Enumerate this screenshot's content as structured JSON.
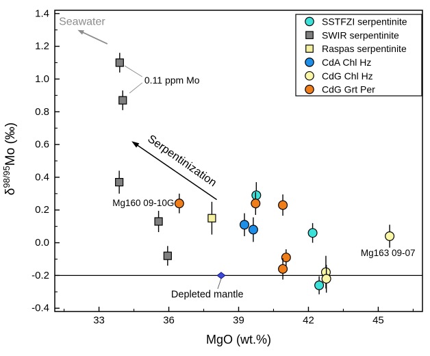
{
  "figure_title": "Mo isotope vs MgO scatter plot",
  "chart_data": {
    "type": "scatter",
    "xlabel": "MgO (wt.%)",
    "ylabel": {
      "delta": "δ",
      "superscript": "98/95",
      "rest": "Mo (‰)"
    },
    "xlim": [
      31.1,
      46.9
    ],
    "ylim": [
      -0.42,
      1.42
    ],
    "xticks": [
      33,
      36,
      39,
      42,
      45
    ],
    "xminorticks": [
      31.5,
      34.5,
      37.5,
      40.5,
      43.5,
      46.5
    ],
    "yticks": [
      1.4,
      1.2,
      1.0,
      0.8,
      0.6,
      0.4,
      0.2,
      0.0,
      -0.2,
      -0.4
    ],
    "yminorticks": [
      1.3,
      1.1,
      0.9,
      0.7,
      0.5,
      0.3,
      0.1,
      -0.1,
      -0.3
    ],
    "grid": false,
    "legend_position": "top-right",
    "frame_color": "#000000",
    "background_color": "#ffffff",
    "series": [
      {
        "name": "SSTFZI serpentinite",
        "marker": "circle",
        "color": "#3be0d8",
        "points": [
          {
            "x": 39.76,
            "y": 0.29,
            "e": 0.08
          },
          {
            "x": 42.18,
            "y": 0.06,
            "e": 0.06
          },
          {
            "x": 42.46,
            "y": -0.26,
            "e": 0.055
          }
        ]
      },
      {
        "name": "SWIR serpentinite",
        "marker": "square",
        "color": "#7f7f7f",
        "points": [
          {
            "x": 33.89,
            "y": 1.1,
            "e": 0.06
          },
          {
            "x": 34.02,
            "y": 0.87,
            "e": 0.06
          },
          {
            "x": 33.87,
            "y": 0.37,
            "e": 0.07
          },
          {
            "x": 35.56,
            "y": 0.13,
            "e": 0.065
          },
          {
            "x": 35.95,
            "y": -0.08,
            "e": 0.06
          }
        ]
      },
      {
        "name": "Raspas serpentinite",
        "marker": "square",
        "color": "#f5f1a0",
        "points": [
          {
            "x": 37.85,
            "y": 0.15,
            "e": 0.1
          }
        ]
      },
      {
        "name": "CdA Chl Hz",
        "marker": "circle",
        "color": "#1e8fe8",
        "points": [
          {
            "x": 39.25,
            "y": 0.11,
            "e": 0.07
          },
          {
            "x": 39.63,
            "y": 0.08,
            "e": 0.075
          }
        ]
      },
      {
        "name": "CdG Chl Hz",
        "marker": "circle",
        "color": "#faf7a6",
        "points": [
          {
            "x": 45.49,
            "y": 0.04,
            "e": 0.07
          },
          {
            "x": 42.75,
            "y": -0.18,
            "e": 0.1
          },
          {
            "x": 42.77,
            "y": -0.22,
            "e": 0.085
          }
        ]
      },
      {
        "name": "CdG Grt Per",
        "marker": "circle",
        "color": "#ef7d1a",
        "points": [
          {
            "x": 36.45,
            "y": 0.24,
            "e": 0.06
          },
          {
            "x": 39.73,
            "y": 0.24,
            "e": 0.07
          },
          {
            "x": 40.9,
            "y": 0.23,
            "e": 0.065
          },
          {
            "x": 41.04,
            "y": -0.09,
            "e": 0.05
          },
          {
            "x": 40.9,
            "y": -0.16,
            "e": 0.065
          }
        ]
      }
    ],
    "reference_line": {
      "y": -0.2,
      "color": "#000000"
    },
    "reference_point": {
      "x": 38.25,
      "y": -0.2,
      "marker": "diamond",
      "fill": "#3a4bd8",
      "stroke": "#15157e",
      "label": "Depleted mantle"
    },
    "annotations": [
      {
        "id": "seawater-label",
        "type": "text",
        "text": "Seawater",
        "x": 31.28,
        "y": 1.349,
        "anchor": "start",
        "color": "#8c8c8c",
        "size": 16
      },
      {
        "id": "seawater-arrow",
        "type": "arrow",
        "x1": 33.36,
        "y1": 1.215,
        "x2": 32.08,
        "y2": 1.3,
        "color": "#8c8c8c",
        "width": 1.8,
        "head": 9,
        "headw": 3.5
      },
      {
        "id": "ppm-mo-label",
        "type": "text",
        "text": "0.11 ppm Mo",
        "x": 34.95,
        "y": 0.993,
        "anchor": "start",
        "color": "#000000",
        "size": 14
      },
      {
        "id": "ppm-connector-1",
        "type": "line",
        "x1": 34.86,
        "y1": 1.014,
        "x2": 34.1,
        "y2": 1.081,
        "color": "#8a8a8a",
        "width": 0.9
      },
      {
        "id": "ppm-connector-2",
        "type": "line",
        "x1": 34.86,
        "y1": 0.977,
        "x2": 34.31,
        "y2": 0.914,
        "color": "#8a8a8a",
        "width": 0.9
      },
      {
        "id": "mg160-label",
        "type": "text",
        "text": "Mg160 09-10G",
        "x": 36.23,
        "y": 0.243,
        "anchor": "end",
        "color": "#000000",
        "size": 13.5
      },
      {
        "id": "serpentinization-label",
        "type": "text",
        "text": "Serpentinization",
        "x": 36.57,
        "y": 0.5,
        "anchor": "middle",
        "color": "#000000",
        "size": 16.5,
        "rotate": 35
      },
      {
        "id": "serpentinization-arrow",
        "type": "arrow",
        "x1": 38.06,
        "y1": 0.263,
        "x2": 34.4,
        "y2": 0.62,
        "color": "#000000",
        "width": 1.5,
        "head": 11,
        "headw": 3.8
      },
      {
        "id": "depleted-mantle-label",
        "type": "text",
        "text": "Depleted mantle",
        "x": 36.1,
        "y": -0.318,
        "anchor": "start",
        "color": "#000000",
        "size": 14.5
      },
      {
        "id": "depleted-connector",
        "type": "line",
        "x1": 38.25,
        "y1": -0.219,
        "x2": 38.1,
        "y2": -0.282,
        "color": "#555555",
        "width": 0.9
      },
      {
        "id": "mg163-label",
        "type": "text",
        "text": "Mg163 09-07",
        "x": 44.25,
        "y": -0.063,
        "anchor": "start",
        "color": "#000000",
        "size": 13.5
      }
    ]
  }
}
